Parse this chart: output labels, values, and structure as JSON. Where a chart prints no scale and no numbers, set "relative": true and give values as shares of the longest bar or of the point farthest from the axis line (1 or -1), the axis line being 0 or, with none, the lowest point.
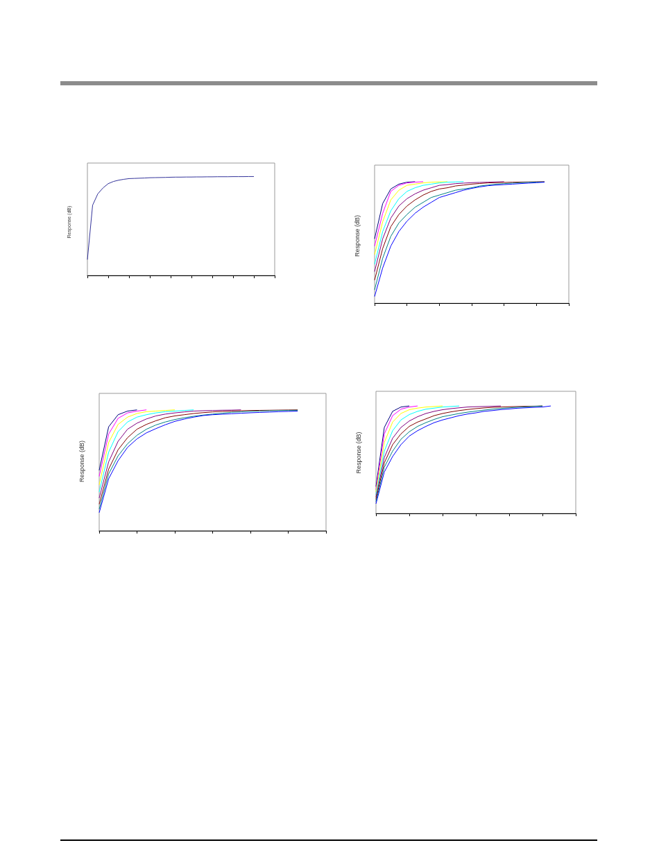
{
  "chart_data": [
    {
      "type": "line",
      "ylabel": "Response (dB)",
      "relative": true,
      "marker": "none",
      "categories": [
        null,
        null,
        null,
        null,
        null,
        null,
        null,
        null,
        null,
        null,
        null,
        null,
        null,
        null,
        null,
        null,
        null,
        null,
        null,
        null,
        null,
        null,
        null,
        null,
        null,
        null,
        null,
        null,
        null,
        null,
        null,
        null,
        null,
        null,
        null,
        null,
        null
      ],
      "series": [
        {
          "color": "#33339a",
          "values": [
            0.16,
            0.71,
            0.825,
            0.885,
            0.928,
            0.95,
            0.963,
            0.972,
            0.979,
            0.981,
            0.983,
            0.985,
            0.988,
            0.989,
            0.99,
            0.991,
            0.993,
            0.994,
            0.994,
            0.995,
            0.995,
            0.996,
            0.996,
            0.997,
            0.997,
            0.998,
            0.998,
            0.998,
            0.999,
            0.999,
            0.999,
            1,
            1,
            null,
            null,
            null,
            null
          ]
        }
      ]
    },
    {
      "type": "line",
      "ylabel": "Response (dB)",
      "relative": true,
      "marker": "none",
      "categories": [
        null,
        null,
        null,
        null,
        null,
        null,
        null,
        null,
        null,
        null,
        null,
        null,
        null,
        null,
        null,
        null,
        null,
        null,
        null,
        null,
        null,
        null,
        null,
        null,
        null
      ],
      "series": [
        {
          "color": "#000080",
          "values": [
            0.53,
            0.82,
            0.94,
            0.98,
            0.996,
            1,
            null,
            null,
            null,
            null,
            null,
            null,
            null,
            null,
            null,
            null,
            null,
            null,
            null,
            null,
            null,
            null,
            null,
            null,
            null
          ]
        },
        {
          "color": "#ff00ff",
          "values": [
            0.47,
            0.74,
            0.92,
            0.97,
            0.99,
            0.996,
            1,
            null,
            null,
            null,
            null,
            null,
            null,
            null,
            null,
            null,
            null,
            null,
            null,
            null,
            null,
            null,
            null,
            null,
            null
          ]
        },
        {
          "color": "#ffff00",
          "values": [
            0.4,
            0.67,
            0.85,
            0.93,
            0.97,
            0.98,
            0.99,
            0.996,
            0.998,
            1,
            null,
            null,
            null,
            null,
            null,
            null,
            null,
            null,
            null,
            null,
            null,
            null,
            null,
            null,
            null
          ]
        },
        {
          "color": "#00ffff",
          "values": [
            0.32,
            0.59,
            0.76,
            0.86,
            0.92,
            0.95,
            0.97,
            0.98,
            0.99,
            0.996,
            0.998,
            1,
            null,
            null,
            null,
            null,
            null,
            null,
            null,
            null,
            null,
            null,
            null,
            null,
            null
          ]
        },
        {
          "color": "#800080",
          "values": [
            0.26,
            0.53,
            0.7,
            0.8,
            0.86,
            0.9,
            0.93,
            0.95,
            0.97,
            0.976,
            0.984,
            0.988,
            0.992,
            0.994,
            0.996,
            0.998,
            1,
            null,
            null,
            null,
            null,
            null,
            null,
            null,
            null
          ]
        },
        {
          "color": "#800000",
          "values": [
            0.19,
            0.45,
            0.63,
            0.73,
            0.8,
            0.85,
            0.89,
            0.92,
            0.94,
            0.95,
            0.965,
            0.972,
            0.98,
            0.985,
            0.99,
            0.992,
            0.994,
            0.996,
            0.997,
            0.998,
            0.999,
            1,
            null,
            null,
            null
          ]
        },
        {
          "color": "#008080",
          "values": [
            0.11,
            0.37,
            0.55,
            0.66,
            0.73,
            0.79,
            0.83,
            0.87,
            0.89,
            0.91,
            0.93,
            0.94,
            0.95,
            0.965,
            0.972,
            0.98,
            0.984,
            0.988,
            0.992,
            0.995,
            0.997,
            0.998,
            null,
            null,
            null
          ]
        },
        {
          "color": "#0000ff",
          "values": [
            0.055,
            0.29,
            0.47,
            0.59,
            0.675,
            0.74,
            0.79,
            0.83,
            0.87,
            0.89,
            0.91,
            0.93,
            0.945,
            0.957,
            0.967,
            0.972,
            0.976,
            0.98,
            0.984,
            0.988,
            0.992,
            0.996,
            null,
            null,
            null
          ]
        }
      ]
    },
    {
      "type": "line",
      "ylabel": "Response (dB)",
      "relative": true,
      "marker": "none",
      "categories": [
        null,
        null,
        null,
        null,
        null,
        null,
        null,
        null,
        null,
        null,
        null,
        null,
        null,
        null,
        null,
        null,
        null,
        null,
        null,
        null,
        null,
        null,
        null,
        null,
        null
      ],
      "series": [
        {
          "color": "#000080",
          "values": [
            0.5,
            0.86,
            0.96,
            0.99,
            1,
            null,
            null,
            null,
            null,
            null,
            null,
            null,
            null,
            null,
            null,
            null,
            null,
            null,
            null,
            null,
            null,
            null,
            null,
            null,
            null
          ]
        },
        {
          "color": "#ff00ff",
          "values": [
            0.45,
            0.8,
            0.93,
            0.975,
            0.99,
            1,
            null,
            null,
            null,
            null,
            null,
            null,
            null,
            null,
            null,
            null,
            null,
            null,
            null,
            null,
            null,
            null,
            null,
            null,
            null
          ]
        },
        {
          "color": "#ffff00",
          "values": [
            0.38,
            0.73,
            0.88,
            0.94,
            0.97,
            0.985,
            0.99,
            0.995,
            1,
            null,
            null,
            null,
            null,
            null,
            null,
            null,
            null,
            null,
            null,
            null,
            null,
            null,
            null,
            null,
            null
          ]
        },
        {
          "color": "#00ffff",
          "values": [
            0.32,
            0.65,
            0.82,
            0.9,
            0.94,
            0.96,
            0.975,
            0.985,
            0.99,
            0.995,
            1,
            null,
            null,
            null,
            null,
            null,
            null,
            null,
            null,
            null,
            null,
            null,
            null,
            null,
            null
          ]
        },
        {
          "color": "#800080",
          "values": [
            0.27,
            0.57,
            0.74,
            0.84,
            0.89,
            0.925,
            0.95,
            0.965,
            0.975,
            0.983,
            0.99,
            0.993,
            0.995,
            0.997,
            0.998,
            1,
            null,
            null,
            null,
            null,
            null,
            null,
            null,
            null,
            null
          ]
        },
        {
          "color": "#800000",
          "values": [
            0.22,
            0.51,
            0.67,
            0.77,
            0.84,
            0.88,
            0.91,
            0.935,
            0.95,
            0.96,
            0.97,
            0.977,
            0.983,
            0.987,
            0.99,
            0.993,
            0.995,
            0.996,
            0.997,
            0.998,
            0.999,
            1,
            null,
            null,
            null
          ]
        },
        {
          "color": "#008080",
          "values": [
            0.18,
            0.47,
            0.62,
            0.72,
            0.79,
            0.84,
            0.875,
            0.9,
            0.92,
            0.935,
            0.947,
            0.957,
            0.965,
            0.972,
            0.98,
            0.984,
            0.988,
            0.991,
            0.993,
            0.995,
            0.996,
            0.997,
            null,
            null,
            null
          ]
        },
        {
          "color": "#0000ff",
          "values": [
            0.15,
            0.43,
            0.58,
            0.69,
            0.76,
            0.81,
            0.845,
            0.877,
            0.905,
            0.924,
            0.94,
            0.953,
            0.96,
            0.964,
            0.968,
            0.972,
            0.976,
            0.979,
            0.982,
            0.985,
            0.987,
            0.99,
            null,
            null,
            null
          ]
        }
      ]
    },
    {
      "type": "line",
      "ylabel": "Response (dB)",
      "relative": true,
      "marker": "none",
      "categories": [
        null,
        null,
        null,
        null,
        null,
        null,
        null,
        null,
        null,
        null,
        null,
        null,
        null,
        null,
        null,
        null,
        null,
        null,
        null,
        null,
        null,
        null,
        null,
        null,
        null
      ],
      "series": [
        {
          "color": "#000080",
          "values": [
            0.25,
            0.8,
            0.95,
            0.99,
            1,
            null,
            null,
            null,
            null,
            null,
            null,
            null,
            null,
            null,
            null,
            null,
            null,
            null,
            null,
            null,
            null,
            null,
            null,
            null,
            null
          ]
        },
        {
          "color": "#ff00ff",
          "values": [
            0.22,
            0.74,
            0.91,
            0.97,
            0.99,
            1,
            null,
            null,
            null,
            null,
            null,
            null,
            null,
            null,
            null,
            null,
            null,
            null,
            null,
            null,
            null,
            null,
            null,
            null,
            null
          ]
        },
        {
          "color": "#ffff00",
          "values": [
            0.2,
            0.66,
            0.85,
            0.93,
            0.965,
            0.98,
            0.99,
            0.995,
            1,
            null,
            null,
            null,
            null,
            null,
            null,
            null,
            null,
            null,
            null,
            null,
            null,
            null,
            null,
            null,
            null
          ]
        },
        {
          "color": "#00ffff",
          "values": [
            0.17,
            0.58,
            0.77,
            0.87,
            0.92,
            0.95,
            0.97,
            0.98,
            0.99,
            0.995,
            1,
            null,
            null,
            null,
            null,
            null,
            null,
            null,
            null,
            null,
            null,
            null,
            null,
            null,
            null
          ]
        },
        {
          "color": "#800080",
          "values": [
            0.15,
            0.52,
            0.7,
            0.8,
            0.86,
            0.9,
            0.93,
            0.95,
            0.965,
            0.975,
            0.983,
            0.99,
            0.993,
            0.995,
            0.997,
            1,
            null,
            null,
            null,
            null,
            null,
            null,
            null,
            null,
            null
          ]
        },
        {
          "color": "#800000",
          "values": [
            0.13,
            0.47,
            0.64,
            0.74,
            0.81,
            0.85,
            0.88,
            0.91,
            0.93,
            0.945,
            0.957,
            0.967,
            0.975,
            0.982,
            0.987,
            0.99,
            0.993,
            0.995,
            0.997,
            0.998,
            1,
            null,
            null,
            null,
            null
          ]
        },
        {
          "color": "#008080",
          "values": [
            0.11,
            0.43,
            0.58,
            0.69,
            0.76,
            0.81,
            0.845,
            0.875,
            0.9,
            0.915,
            0.93,
            0.942,
            0.952,
            0.962,
            0.97,
            0.977,
            0.983,
            0.988,
            0.992,
            0.996,
            1,
            null,
            null,
            null,
            null
          ]
        },
        {
          "color": "#0000ff",
          "values": [
            0.09,
            0.385,
            0.53,
            0.64,
            0.72,
            0.77,
            0.81,
            0.845,
            0.87,
            0.89,
            0.91,
            0.925,
            0.936,
            0.95,
            0.957,
            0.966,
            0.972,
            0.979,
            0.983,
            0.987,
            0.99,
            1,
            null,
            null,
            null
          ]
        }
      ]
    }
  ]
}
